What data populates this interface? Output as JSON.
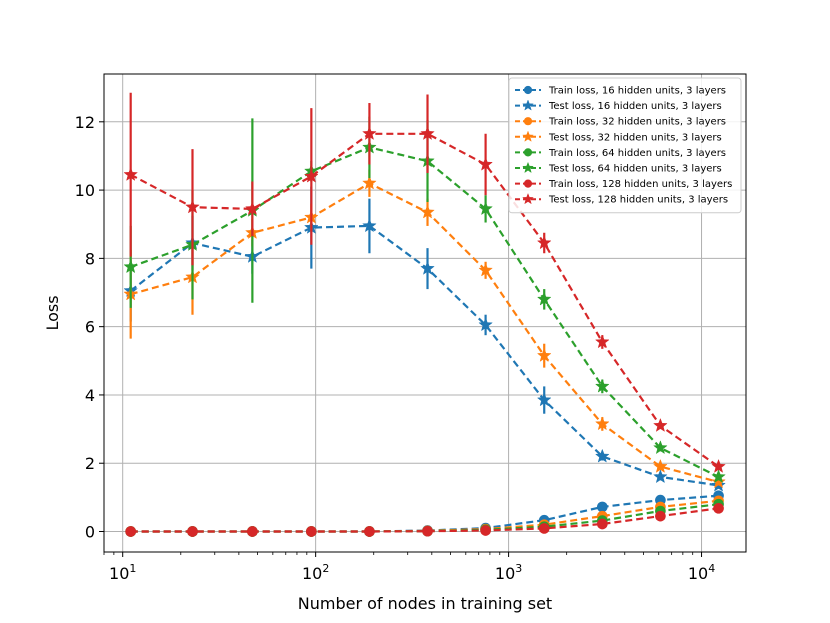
{
  "chart_data": {
    "type": "line",
    "title": "",
    "xlabel": "Number of nodes in training set",
    "ylabel": "Loss",
    "xscale": "log",
    "xlim": [
      8.0,
      17000
    ],
    "ylim": [
      -0.6,
      13.4
    ],
    "xticks": [
      {
        "value": 10,
        "base": "10",
        "exp": "1"
      },
      {
        "value": 100,
        "base": "10",
        "exp": "2"
      },
      {
        "value": 1000,
        "base": "10",
        "exp": "3"
      },
      {
        "value": 10000,
        "base": "10",
        "exp": "4"
      }
    ],
    "yticks": [
      {
        "value": 0,
        "label": "0"
      },
      {
        "value": 2,
        "label": "2"
      },
      {
        "value": 4,
        "label": "4"
      },
      {
        "value": 6,
        "label": "6"
      },
      {
        "value": 8,
        "label": "8"
      },
      {
        "value": 10,
        "label": "10"
      },
      {
        "value": 12,
        "label": "12"
      }
    ],
    "grid": true,
    "legend_position": "top-right",
    "x": [
      11,
      23,
      47,
      95,
      190,
      380,
      760,
      1530,
      3060,
      6120,
      12250
    ],
    "series": [
      {
        "name": "Train loss, 16 hidden units, 3 layers",
        "color": "#1f77b4",
        "marker": "circle",
        "values": [
          0.0,
          0.0,
          0.0,
          0.0,
          0.0,
          0.03,
          0.1,
          0.33,
          0.72,
          0.92,
          1.05
        ],
        "errors": [
          0,
          0,
          0,
          0,
          0,
          0.02,
          0.04,
          0.06,
          0.08,
          0.08,
          0.1
        ]
      },
      {
        "name": "Test loss, 16 hidden units, 3 layers",
        "color": "#1f77b4",
        "marker": "star",
        "values": [
          7.05,
          8.45,
          8.05,
          8.9,
          8.95,
          7.7,
          6.05,
          3.85,
          2.2,
          1.6,
          1.35
        ],
        "errors": [
          0.9,
          0.8,
          0.5,
          1.2,
          0.8,
          0.6,
          0.3,
          0.4,
          0.12,
          0.1,
          0.1
        ]
      },
      {
        "name": "Train loss, 32 hidden units, 3 layers",
        "color": "#ff7f0e",
        "marker": "circle",
        "values": [
          0.0,
          0.0,
          0.0,
          0.0,
          0.0,
          0.02,
          0.07,
          0.2,
          0.45,
          0.72,
          0.9
        ],
        "errors": [
          0,
          0,
          0,
          0,
          0,
          0.02,
          0.03,
          0.05,
          0.06,
          0.07,
          0.08
        ]
      },
      {
        "name": "Test loss, 32 hidden units, 3 layers",
        "color": "#ff7f0e",
        "marker": "star",
        "values": [
          6.95,
          7.45,
          8.75,
          9.2,
          10.2,
          9.35,
          7.65,
          5.15,
          3.15,
          1.9,
          1.45
        ],
        "errors": [
          1.3,
          1.1,
          0.4,
          0.4,
          0.4,
          0.4,
          0.25,
          0.35,
          0.2,
          0.1,
          0.1
        ]
      },
      {
        "name": "Train loss, 64 hidden units, 3 layers",
        "color": "#2ca02c",
        "marker": "circle",
        "values": [
          0.0,
          0.0,
          0.0,
          0.0,
          0.0,
          0.01,
          0.05,
          0.14,
          0.32,
          0.6,
          0.8
        ],
        "errors": [
          0,
          0,
          0,
          0,
          0,
          0.01,
          0.02,
          0.04,
          0.05,
          0.06,
          0.07
        ]
      },
      {
        "name": "Test loss, 64 hidden units, 3 layers",
        "color": "#2ca02c",
        "marker": "star",
        "values": [
          7.75,
          8.4,
          9.4,
          10.55,
          11.25,
          10.85,
          9.45,
          6.8,
          4.25,
          2.45,
          1.6
        ],
        "errors": [
          1.2,
          1.6,
          2.7,
          0.3,
          0.9,
          1.2,
          0.4,
          0.3,
          0.2,
          0.1,
          0.1
        ]
      },
      {
        "name": "Train loss, 128 hidden units, 3 layers",
        "color": "#d62728",
        "marker": "circle",
        "values": [
          0.0,
          0.0,
          0.0,
          0.0,
          0.0,
          0.01,
          0.03,
          0.09,
          0.22,
          0.45,
          0.68
        ],
        "errors": [
          0,
          0,
          0,
          0,
          0,
          0.01,
          0.02,
          0.03,
          0.04,
          0.05,
          0.06
        ]
      },
      {
        "name": "Test loss, 128 hidden units, 3 layers",
        "color": "#d62728",
        "marker": "star",
        "values": [
          10.45,
          9.5,
          9.45,
          10.4,
          11.65,
          11.65,
          10.75,
          8.45,
          5.55,
          3.1,
          1.9
        ],
        "errors": [
          2.4,
          1.7,
          0.8,
          2.0,
          0.9,
          1.15,
          0.9,
          0.3,
          0.2,
          0.1,
          0.1
        ]
      }
    ]
  }
}
